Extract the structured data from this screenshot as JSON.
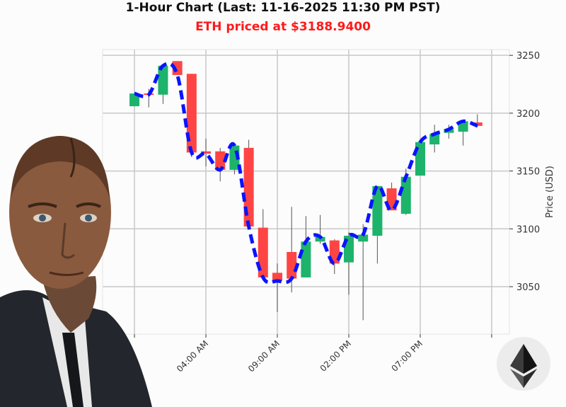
{
  "chart_data": {
    "type": "candlestick",
    "title": "1-Hour Chart (Last: 11-16-2025 11:30 PM PST)",
    "subtitle": "ETH priced at $3188.9400",
    "ylabel": "Price (USD)",
    "xlabel": "",
    "ylim": [
      3009,
      3255
    ],
    "y_ticks": [
      3050,
      3100,
      3150,
      3200,
      3250
    ],
    "x_ticks": [
      {
        "index": 0,
        "label": ""
      },
      {
        "index": 5,
        "label": "04:00 AM"
      },
      {
        "index": 10,
        "label": "09:00 AM"
      },
      {
        "index": 15,
        "label": "02:00 PM"
      },
      {
        "index": 20,
        "label": "07:00 PM"
      },
      {
        "index": 25,
        "label": ""
      }
    ],
    "grid": true,
    "colors": {
      "up": "#1db36b",
      "down": "#ff4444",
      "line": "#0a14ff"
    },
    "candles": [
      {
        "o": 3206,
        "h": 3217,
        "l": 3206,
        "c": 3217
      },
      {
        "o": 3217,
        "h": 3221,
        "l": 3205,
        "c": 3216
      },
      {
        "o": 3216,
        "h": 3241,
        "l": 3208,
        "c": 3241
      },
      {
        "o": 3245,
        "h": 3245,
        "l": 3233,
        "c": 3233
      },
      {
        "o": 3234,
        "h": 3234,
        "l": 3162,
        "c": 3166
      },
      {
        "o": 3167,
        "h": 3178,
        "l": 3154,
        "c": 3165
      },
      {
        "o": 3167,
        "h": 3170,
        "l": 3141,
        "c": 3151
      },
      {
        "o": 3151,
        "h": 3173,
        "l": 3147,
        "c": 3172
      },
      {
        "o": 3170,
        "h": 3177,
        "l": 3102,
        "c": 3102
      },
      {
        "o": 3101,
        "h": 3117,
        "l": 3058,
        "c": 3058
      },
      {
        "o": 3062,
        "h": 3070,
        "l": 3028,
        "c": 3055
      },
      {
        "o": 3080,
        "h": 3119,
        "l": 3045,
        "c": 3057
      },
      {
        "o": 3058,
        "h": 3111,
        "l": 3058,
        "c": 3089
      },
      {
        "o": 3089,
        "h": 3112,
        "l": 3087,
        "c": 3093
      },
      {
        "o": 3090,
        "h": 3091,
        "l": 3061,
        "c": 3070
      },
      {
        "o": 3071,
        "h": 3097,
        "l": 3043,
        "c": 3094
      },
      {
        "o": 3089,
        "h": 3104,
        "l": 3021,
        "c": 3095
      },
      {
        "o": 3094,
        "h": 3137,
        "l": 3070,
        "c": 3137
      },
      {
        "o": 3135,
        "h": 3140,
        "l": 3116,
        "c": 3116
      },
      {
        "o": 3113,
        "h": 3152,
        "l": 3112,
        "c": 3145
      },
      {
        "o": 3146,
        "h": 3175,
        "l": 3146,
        "c": 3175
      },
      {
        "o": 3173,
        "h": 3190,
        "l": 3166,
        "c": 3182
      },
      {
        "o": 3183,
        "h": 3190,
        "l": 3178,
        "c": 3186
      },
      {
        "o": 3184,
        "h": 3193,
        "l": 3172,
        "c": 3193
      },
      {
        "o": 3192,
        "h": 3199,
        "l": 3188,
        "c": 3189
      }
    ]
  },
  "icons": {
    "portrait": "android-portrait",
    "logo": "ethereum-logo"
  }
}
